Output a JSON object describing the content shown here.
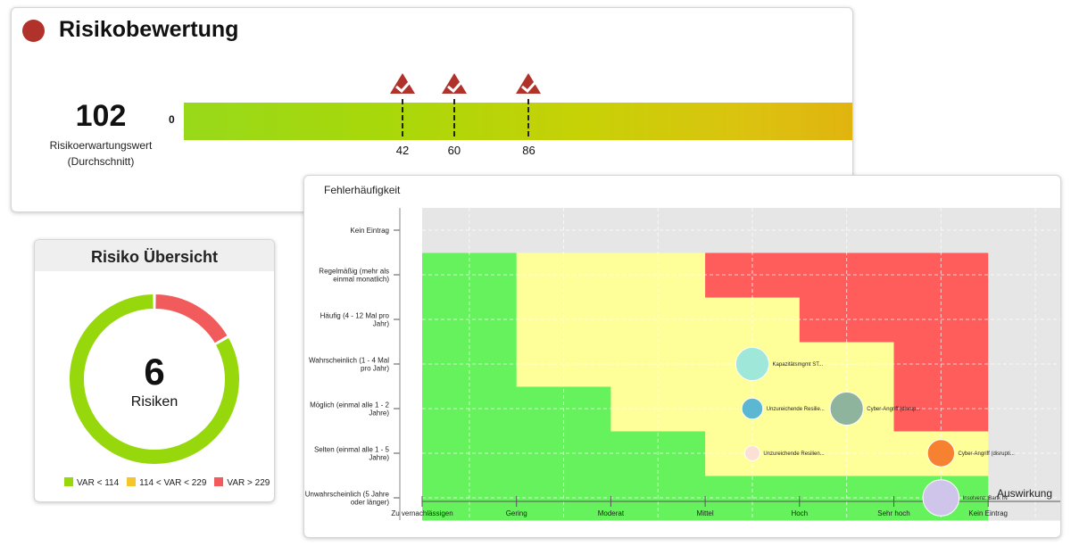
{
  "score": {
    "title": "Risikobewertung",
    "value": "102",
    "label_line1": "Risikoerwartungswert",
    "label_line2": "(Durchschnitt)",
    "scale_start": "0",
    "markers": [
      42,
      60,
      86
    ],
    "colors": {
      "dot": "#b0322a",
      "marker": "#b0322a"
    }
  },
  "overview": {
    "title": "Risiko Übersicht",
    "count": "6",
    "count_label": "Risiken",
    "segments": [
      {
        "name": "VAR < 114",
        "value": 5,
        "color": "#96d80c"
      },
      {
        "name": "114 < VAR < 229",
        "value": 0,
        "color": "#f5c52a"
      },
      {
        "name": "VAR > 229",
        "value": 1,
        "color": "#f25b5b"
      }
    ]
  },
  "chart_data": {
    "type": "scatter",
    "ylabel": "Fehlerhäufigkeit",
    "xlabel": "Auswirkung",
    "x_categories": [
      "Zu vernachlässigen",
      "Gering",
      "Moderat",
      "Mittel",
      "Hoch",
      "Sehr hoch",
      "Kein Eintrag"
    ],
    "y_categories": [
      [
        "Unwahrscheinlich (5 Jahre",
        "oder länger)"
      ],
      [
        "Selten (einmal alle 1 - 5",
        "Jahre)"
      ],
      [
        "Möglich (einmal alle 1 - 2",
        "Jahre)"
      ],
      [
        "Wahrscheinlich (1 - 4 Mal",
        "pro Jahr)"
      ],
      [
        "Häufig (4 - 12 Mal pro",
        "Jahr)"
      ],
      [
        "Regelmäßig (mehr als",
        "einmal monatlich)"
      ],
      [
        "Kein Eintrag"
      ]
    ],
    "zones": {
      "colors": {
        "green": "#66f25c",
        "yellow": "#ffff99",
        "red": "#ff5c5c",
        "empty": "#e6e6e6"
      },
      "rows": [
        [
          "green",
          "green",
          "green",
          "green",
          "green",
          "green",
          "empty"
        ],
        [
          "green",
          "green",
          "green",
          "yellow",
          "yellow",
          "yellow",
          "empty"
        ],
        [
          "green",
          "green",
          "yellow",
          "yellow",
          "yellow",
          "red",
          "empty"
        ],
        [
          "green",
          "yellow",
          "yellow",
          "yellow",
          "yellow",
          "red",
          "empty"
        ],
        [
          "green",
          "yellow",
          "yellow",
          "yellow",
          "red",
          "red",
          "empty"
        ],
        [
          "green",
          "yellow",
          "yellow",
          "red",
          "red",
          "red",
          "empty"
        ],
        [
          "empty",
          "empty",
          "empty",
          "empty",
          "empty",
          "empty",
          "empty"
        ]
      ]
    },
    "points": [
      {
        "label": "Kapazitätsmgmt ST...",
        "x": 3,
        "y": 3,
        "size": 4,
        "color": "#9ee7d9"
      },
      {
        "label": "Unzureichende Resilie...",
        "x": 3,
        "y": 2,
        "size": 2,
        "color": "#5cb8d2"
      },
      {
        "label": "Cyber-Angriff (disrup...",
        "x": 4,
        "y": 2,
        "size": 4,
        "color": "#8fb49d"
      },
      {
        "label": "Unzureichende Resilien...",
        "x": 3,
        "y": 1,
        "size": 1,
        "color": "#fbe0d3"
      },
      {
        "label": "Cyber-Angriff (disrupti...",
        "x": 5,
        "y": 1,
        "size": 3,
        "color": "#f58131"
      },
      {
        "label": "Insolvenz: Bank IN",
        "x": 5,
        "y": 0,
        "size": 4.5,
        "color": "#cfc5ea"
      }
    ]
  }
}
